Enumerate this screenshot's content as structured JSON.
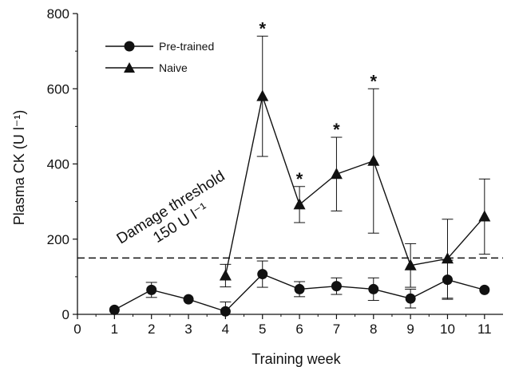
{
  "chart_data": {
    "type": "line",
    "xlabel": "Training week",
    "ylabel": "Plasma CK (U l⁻¹)",
    "xlim": [
      0,
      11.5
    ],
    "ylim": [
      0,
      800
    ],
    "x_ticks": [
      "0",
      "1",
      "2",
      "3",
      "4",
      "5",
      "6",
      "7",
      "8",
      "9",
      "10",
      "11"
    ],
    "y_ticks": [
      "0",
      "200",
      "400",
      "600",
      "800"
    ],
    "legend_position": "top-left",
    "threshold": {
      "value": 150,
      "label_line1": "Damage threshold",
      "label_line2": "150 U l⁻¹"
    },
    "series": [
      {
        "name": "Pre-trained",
        "marker": "circle",
        "x": [
          1,
          2,
          3,
          4,
          5,
          6,
          7,
          8,
          9,
          10,
          11
        ],
        "y": [
          12,
          65,
          40,
          8,
          107,
          67,
          75,
          67,
          42,
          92,
          65
        ],
        "err_upper": [
          0,
          20,
          0,
          25,
          35,
          20,
          22,
          30,
          25,
          52,
          0
        ],
        "err_lower": [
          0,
          20,
          0,
          0,
          35,
          20,
          22,
          30,
          25,
          52,
          0
        ]
      },
      {
        "name": "Naive",
        "marker": "triangle",
        "x": [
          4,
          5,
          6,
          7,
          8,
          9,
          10,
          11
        ],
        "y": [
          103,
          580,
          292,
          373,
          408,
          130,
          148,
          260
        ],
        "err_upper": [
          30,
          160,
          48,
          98,
          192,
          58,
          105,
          100
        ],
        "err_lower": [
          30,
          160,
          48,
          98,
          192,
          58,
          105,
          100
        ]
      }
    ],
    "significance": {
      "symbol": "*",
      "x": [
        5,
        6,
        7,
        8
      ]
    }
  }
}
